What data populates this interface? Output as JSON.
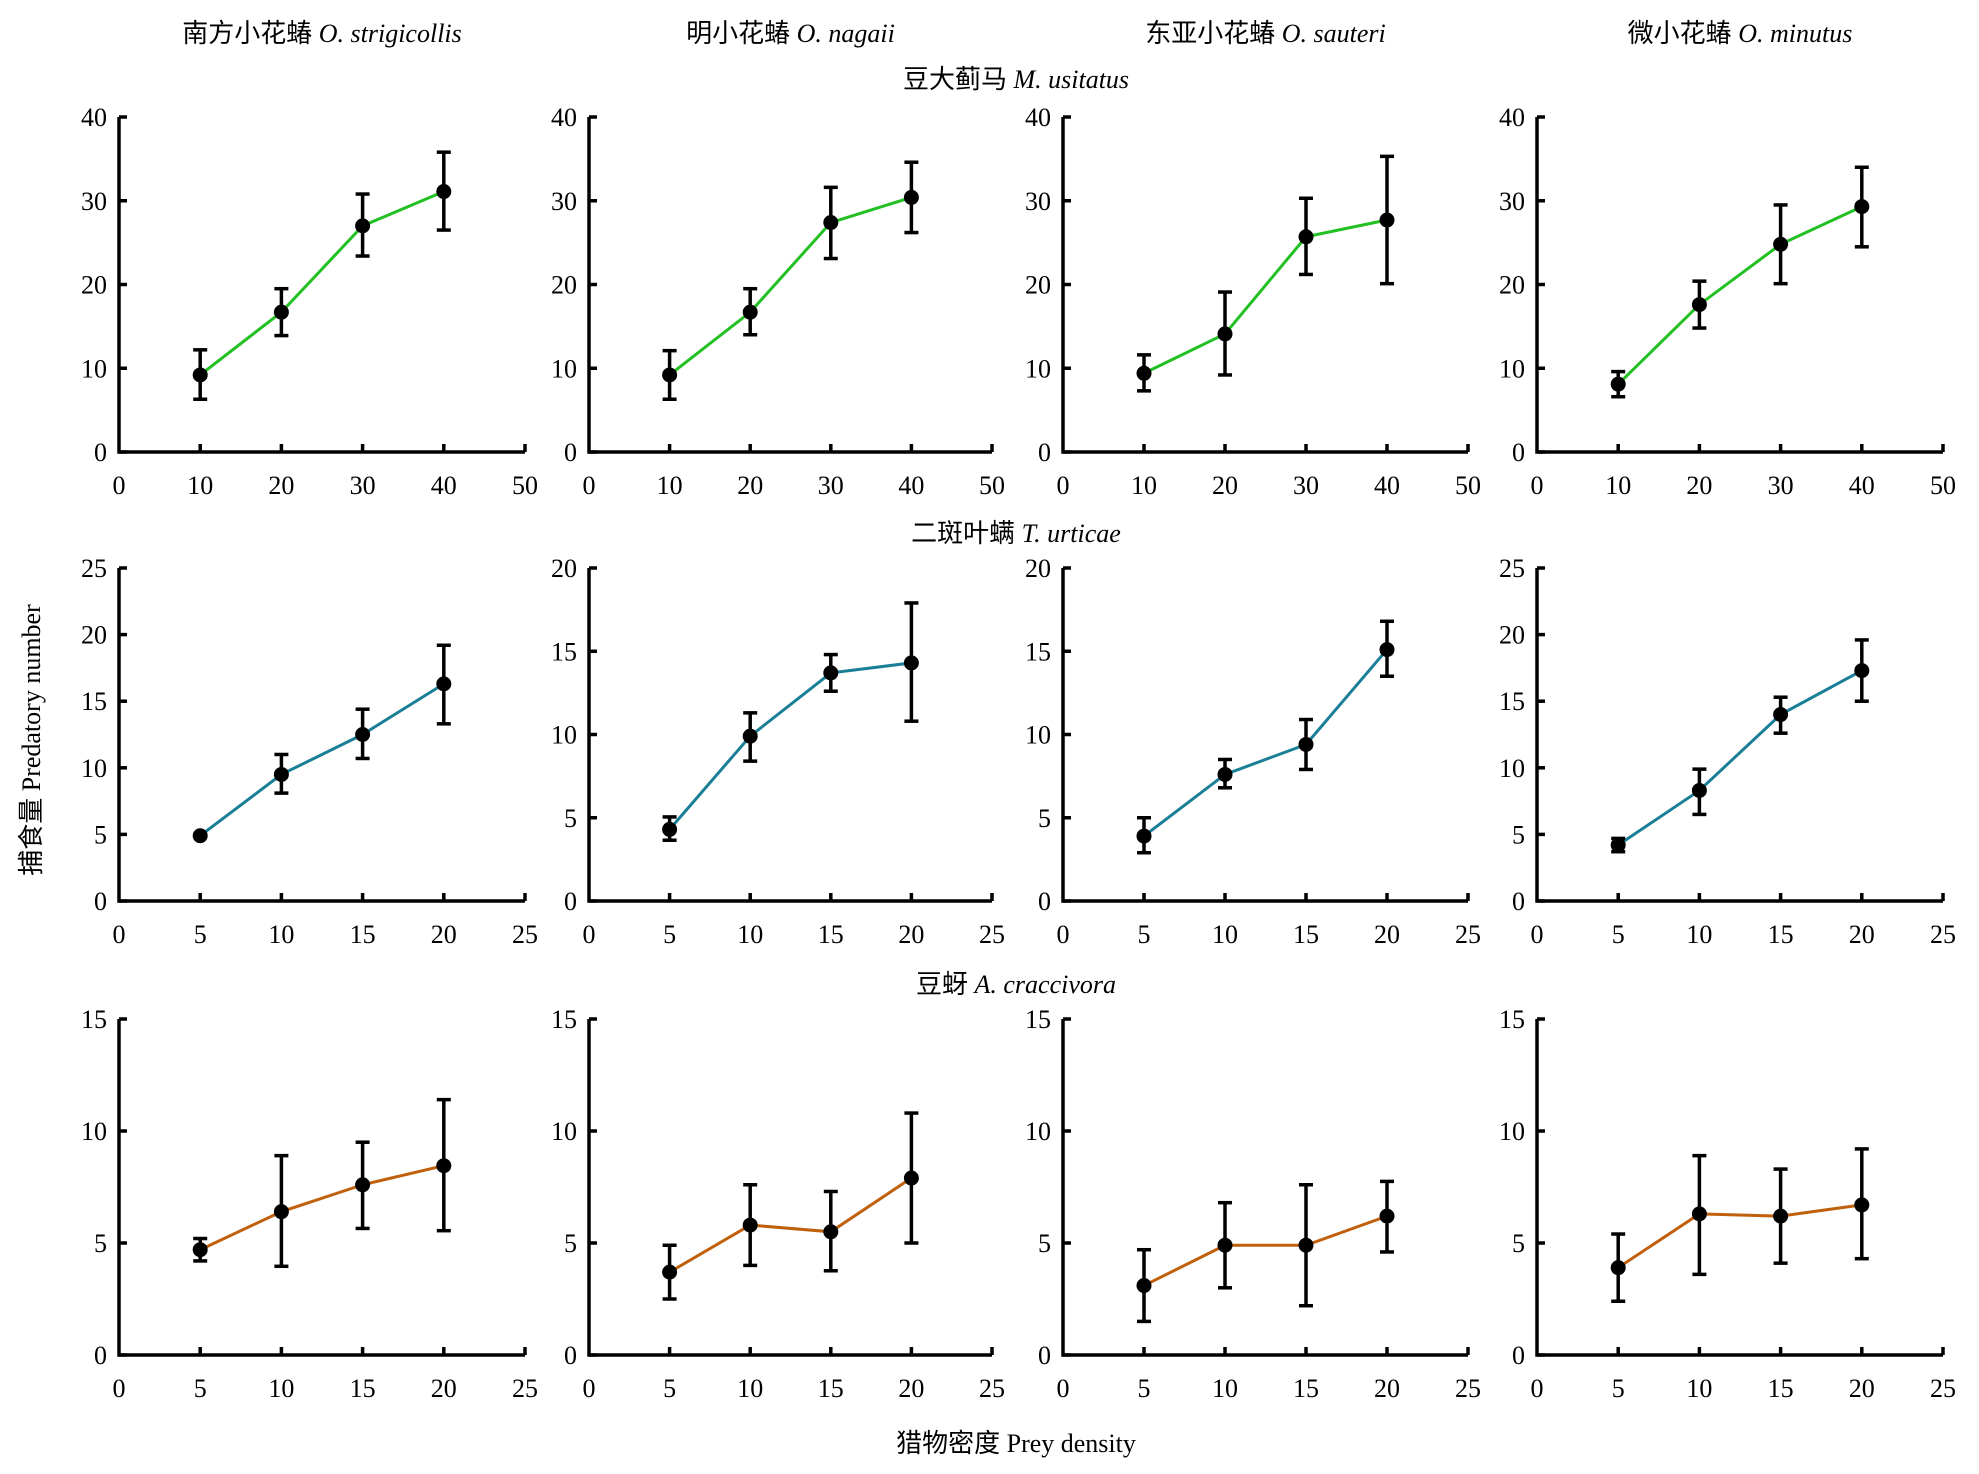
{
  "figure": {
    "column_titles": [
      {
        "cn": "南方小花蝽",
        "latin": "O. strigicollis"
      },
      {
        "cn": "明小花蝽",
        "latin": "O. nagaii"
      },
      {
        "cn": "东亚小花蝽",
        "latin": "O. sauteri"
      },
      {
        "cn": "微小花蝽",
        "latin": "O. minutus"
      }
    ],
    "row_titles": [
      {
        "cn": "豆大蓟马",
        "latin": "M. usitatus"
      },
      {
        "cn": "二斑叶螨",
        "latin": "T. urticae"
      },
      {
        "cn": "豆蚜",
        "latin": "A. craccivora"
      }
    ],
    "ylabel": "捕食量 Predatory number",
    "xlabel": "猎物密度 Prey density"
  },
  "chart_data": [
    {
      "type": "line",
      "row": 0,
      "col": 0,
      "prey": "M. usitatus",
      "predator": "O. strigicollis",
      "color": "#22c022",
      "x": [
        10,
        20,
        30,
        40
      ],
      "y": [
        9.2,
        16.7,
        27.0,
        31.1
      ],
      "err_low": [
        6.3,
        13.9,
        23.4,
        26.5
      ],
      "err_high": [
        12.2,
        19.5,
        30.8,
        35.8
      ],
      "xlim": [
        0,
        50
      ],
      "ylim": [
        0,
        40
      ],
      "xticks": [
        "0",
        "10",
        "20",
        "30",
        "40",
        "50"
      ],
      "yticks": [
        "0",
        "10",
        "20",
        "30",
        "40"
      ]
    },
    {
      "type": "line",
      "row": 0,
      "col": 1,
      "prey": "M. usitatus",
      "predator": "O. nagaii",
      "color": "#22c022",
      "x": [
        10,
        20,
        30,
        40
      ],
      "y": [
        9.2,
        16.7,
        27.4,
        30.4
      ],
      "err_low": [
        6.3,
        14.0,
        23.1,
        26.2
      ],
      "err_high": [
        12.1,
        19.5,
        31.6,
        34.6
      ],
      "xlim": [
        0,
        50
      ],
      "ylim": [
        0,
        40
      ],
      "xticks": [
        "0",
        "10",
        "20",
        "30",
        "40",
        "50"
      ],
      "yticks": [
        "0",
        "10",
        "20",
        "30",
        "40"
      ]
    },
    {
      "type": "line",
      "row": 0,
      "col": 2,
      "prey": "M. usitatus",
      "predator": "O. sauteri",
      "color": "#22c022",
      "x": [
        10,
        20,
        30,
        40
      ],
      "y": [
        9.4,
        14.1,
        25.7,
        27.7
      ],
      "err_low": [
        7.3,
        9.2,
        21.2,
        20.1
      ],
      "err_high": [
        11.6,
        19.1,
        30.3,
        35.3
      ],
      "xlim": [
        0,
        50
      ],
      "ylim": [
        0,
        40
      ],
      "xticks": [
        "0",
        "10",
        "20",
        "30",
        "40",
        "50"
      ],
      "yticks": [
        "0",
        "10",
        "20",
        "30",
        "40"
      ]
    },
    {
      "type": "line",
      "row": 0,
      "col": 3,
      "prey": "M. usitatus",
      "predator": "O. minutus",
      "color": "#22c022",
      "x": [
        10,
        20,
        30,
        40
      ],
      "y": [
        8.1,
        17.6,
        24.8,
        29.3
      ],
      "err_low": [
        6.6,
        14.8,
        20.1,
        24.5
      ],
      "err_high": [
        9.6,
        20.4,
        29.5,
        34.0
      ],
      "xlim": [
        0,
        50
      ],
      "ylim": [
        0,
        40
      ],
      "xticks": [
        "0",
        "10",
        "20",
        "30",
        "40",
        "50"
      ],
      "yticks": [
        "0",
        "10",
        "20",
        "30",
        "40"
      ]
    },
    {
      "type": "line",
      "row": 1,
      "col": 0,
      "prey": "T. urticae",
      "predator": "O. strigicollis",
      "color": "#1a7f96",
      "x": [
        5,
        10,
        15,
        20
      ],
      "y": [
        4.9,
        9.5,
        12.5,
        16.3
      ],
      "err_low": [
        4.9,
        8.1,
        10.7,
        13.3
      ],
      "err_high": [
        4.9,
        11.0,
        14.4,
        19.2
      ],
      "xlim": [
        0,
        25
      ],
      "ylim": [
        0,
        25
      ],
      "xticks": [
        "0",
        "5",
        "10",
        "15",
        "20",
        "25"
      ],
      "yticks": [
        "0",
        "5",
        "10",
        "15",
        "20",
        "25"
      ]
    },
    {
      "type": "line",
      "row": 1,
      "col": 1,
      "prey": "T. urticae",
      "predator": "O. nagaii",
      "color": "#1a7f96",
      "x": [
        5,
        10,
        15,
        20
      ],
      "y": [
        4.3,
        9.9,
        13.7,
        14.3
      ],
      "err_low": [
        3.65,
        8.4,
        12.6,
        10.8
      ],
      "err_high": [
        5.05,
        11.3,
        14.8,
        17.9
      ],
      "xlim": [
        0,
        25
      ],
      "ylim": [
        0,
        20
      ],
      "xticks": [
        "0",
        "5",
        "10",
        "15",
        "20",
        "25"
      ],
      "yticks": [
        "0",
        "5",
        "10",
        "15",
        "20"
      ]
    },
    {
      "type": "line",
      "row": 1,
      "col": 2,
      "prey": "T. urticae",
      "predator": "O. sauteri",
      "color": "#1a7f96",
      "x": [
        5,
        10,
        15,
        20
      ],
      "y": [
        3.9,
        7.6,
        9.4,
        15.1
      ],
      "err_low": [
        2.9,
        6.8,
        7.9,
        13.5
      ],
      "err_high": [
        5.0,
        8.5,
        10.9,
        16.8
      ],
      "xlim": [
        0,
        25
      ],
      "ylim": [
        0,
        20
      ],
      "xticks": [
        "0",
        "5",
        "10",
        "15",
        "20",
        "25"
      ],
      "yticks": [
        "0",
        "5",
        "10",
        "15",
        "20"
      ]
    },
    {
      "type": "line",
      "row": 1,
      "col": 3,
      "prey": "T. urticae",
      "predator": "O. minutus",
      "color": "#1a7f96",
      "x": [
        5,
        10,
        15,
        20
      ],
      "y": [
        4.2,
        8.3,
        14.0,
        17.3
      ],
      "err_low": [
        3.7,
        6.5,
        12.6,
        15.0
      ],
      "err_high": [
        4.7,
        9.9,
        15.3,
        19.6
      ],
      "xlim": [
        0,
        25
      ],
      "ylim": [
        0,
        25
      ],
      "xticks": [
        "0",
        "5",
        "10",
        "15",
        "20",
        "25"
      ],
      "yticks": [
        "0",
        "5",
        "10",
        "15",
        "20",
        "25"
      ]
    },
    {
      "type": "line",
      "row": 2,
      "col": 0,
      "prey": "A. craccivora",
      "predator": "O. strigicollis",
      "color": "#c0600c",
      "x": [
        5,
        10,
        15,
        20
      ],
      "y": [
        4.7,
        6.4,
        7.6,
        8.45
      ],
      "err_low": [
        4.2,
        3.96,
        5.65,
        5.55
      ],
      "err_high": [
        5.2,
        8.9,
        9.5,
        11.4
      ],
      "xlim": [
        0,
        25
      ],
      "ylim": [
        0,
        15
      ],
      "xticks": [
        "0",
        "5",
        "10",
        "15",
        "20",
        "25"
      ],
      "yticks": [
        "0",
        "5",
        "10",
        "15"
      ]
    },
    {
      "type": "line",
      "row": 2,
      "col": 1,
      "prey": "A. craccivora",
      "predator": "O. nagaii",
      "color": "#c0600c",
      "x": [
        5,
        10,
        15,
        20
      ],
      "y": [
        3.7,
        5.8,
        5.5,
        7.9
      ],
      "err_low": [
        2.5,
        4.0,
        3.76,
        5.0
      ],
      "err_high": [
        4.9,
        7.6,
        7.3,
        10.8
      ],
      "xlim": [
        0,
        25
      ],
      "ylim": [
        0,
        15
      ],
      "xticks": [
        "0",
        "5",
        "10",
        "15",
        "20",
        "25"
      ],
      "yticks": [
        "0",
        "5",
        "10",
        "15"
      ]
    },
    {
      "type": "line",
      "row": 2,
      "col": 2,
      "prey": "A. craccivora",
      "predator": "O. sauteri",
      "color": "#c0600c",
      "x": [
        5,
        10,
        15,
        20
      ],
      "y": [
        3.1,
        4.9,
        4.9,
        6.2
      ],
      "err_low": [
        1.5,
        3.0,
        2.2,
        4.6
      ],
      "err_high": [
        4.7,
        6.8,
        7.6,
        7.75
      ],
      "xlim": [
        0,
        25
      ],
      "ylim": [
        0,
        15
      ],
      "xticks": [
        "0",
        "5",
        "10",
        "15",
        "20",
        "25"
      ],
      "yticks": [
        "0",
        "5",
        "10",
        "15"
      ]
    },
    {
      "type": "line",
      "row": 2,
      "col": 3,
      "prey": "A. craccivora",
      "predator": "O. minutus",
      "color": "#c0600c",
      "x": [
        5,
        10,
        15,
        20
      ],
      "y": [
        3.9,
        6.3,
        6.2,
        6.7
      ],
      "err_low": [
        2.4,
        3.6,
        4.1,
        4.3
      ],
      "err_high": [
        5.4,
        8.9,
        8.3,
        9.2
      ],
      "xlim": [
        0,
        25
      ],
      "ylim": [
        0,
        15
      ],
      "xticks": [
        "0",
        "5",
        "10",
        "15",
        "20",
        "25"
      ],
      "yticks": [
        "0",
        "5",
        "10",
        "15"
      ]
    }
  ]
}
